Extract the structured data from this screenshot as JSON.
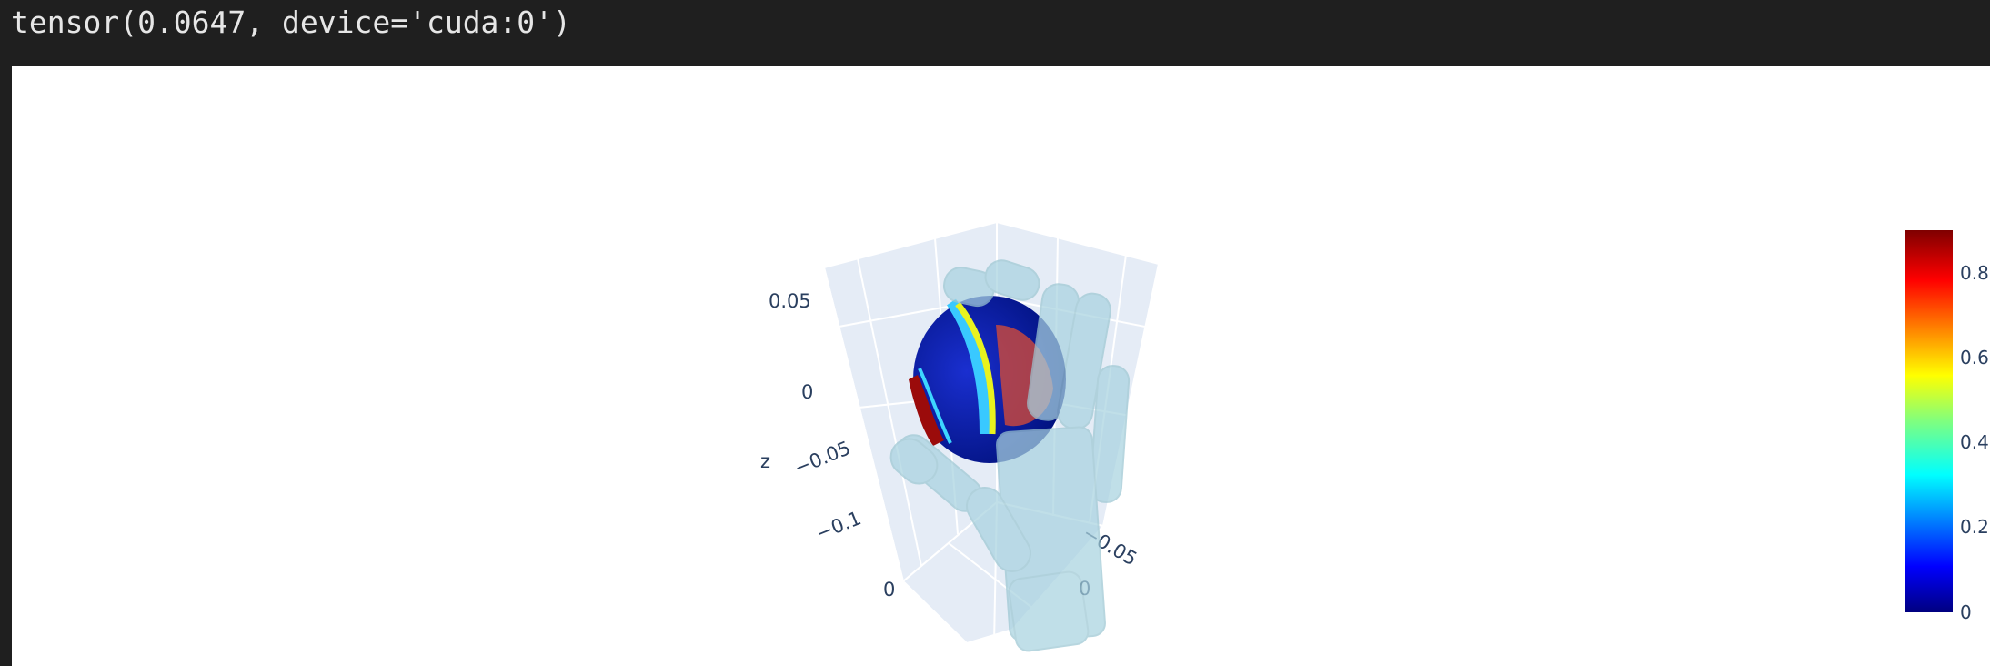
{
  "cell_output": {
    "text": "tensor(0.0647, device='cuda:0')"
  },
  "chart_data": {
    "type": "scatter3d+mesh3d",
    "axes": {
      "z": {
        "label": "z",
        "tick_labels": [
          "0.05",
          "0",
          "−0.05",
          "−0.1"
        ]
      },
      "x": {
        "tick_labels": [
          "0"
        ]
      },
      "y": {
        "tick_labels": [
          "−0.05",
          "0"
        ]
      }
    },
    "colorscale": "Jet",
    "colorbar": {
      "range": [
        0,
        0.9
      ],
      "tick_labels": [
        "0",
        "0.2",
        "0.4",
        "0.6",
        "0.8"
      ],
      "tick_values": [
        0,
        0.2,
        0.4,
        0.6,
        0.8
      ]
    },
    "traces": [
      {
        "kind": "point-cloud",
        "color_mode": "value"
      },
      {
        "kind": "hand-mesh",
        "color": "#a9d3e0"
      }
    ]
  }
}
